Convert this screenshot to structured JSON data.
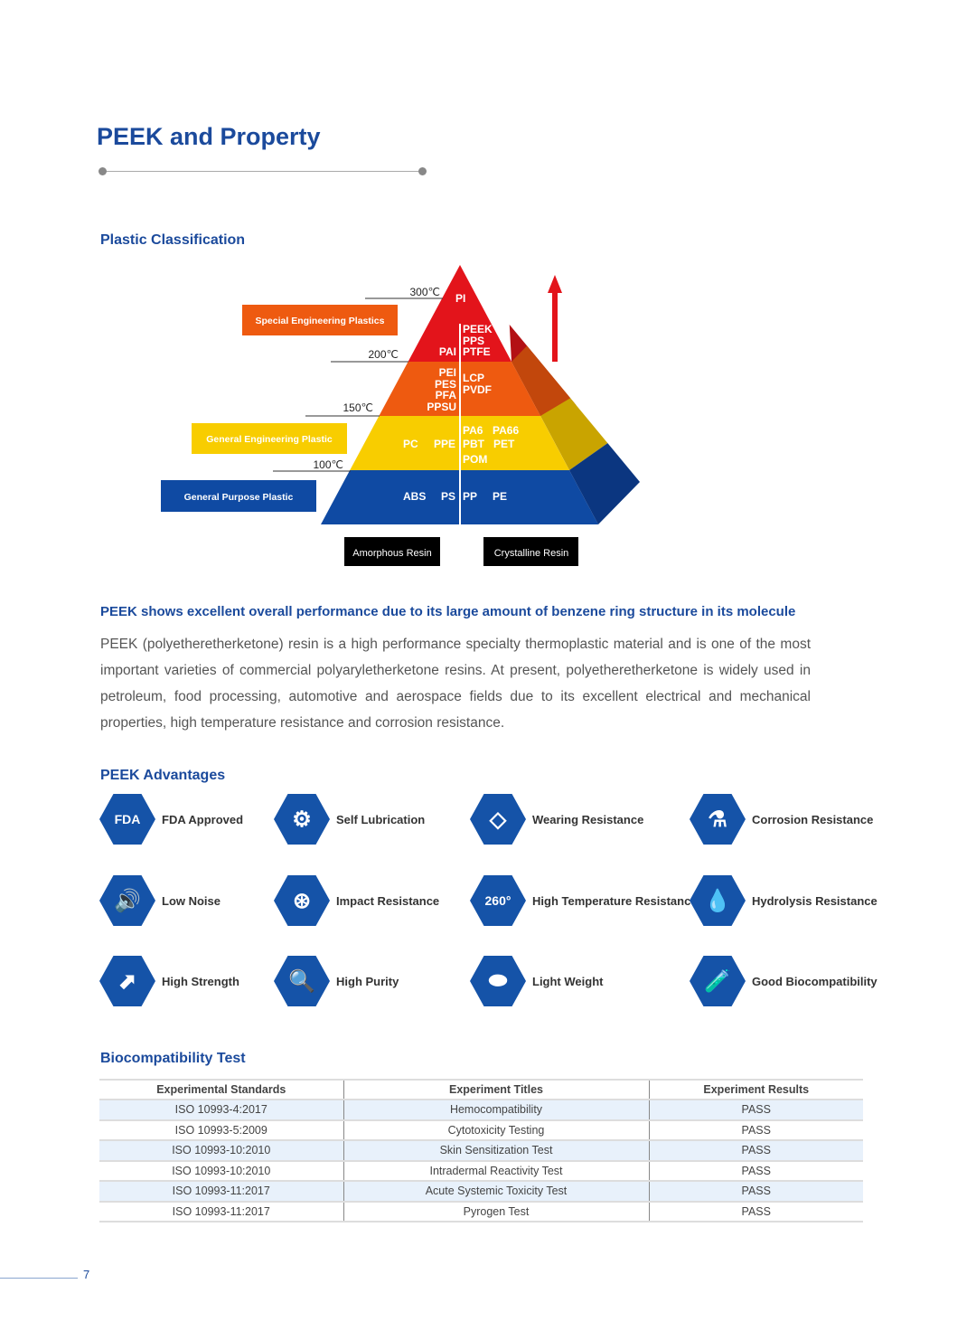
{
  "page": {
    "title": "PEEK and Property",
    "page_number": "7",
    "accent": "#1b4a9c"
  },
  "classification": {
    "heading": "Plastic Classification",
    "temps": [
      "300℃",
      "200℃",
      "150℃",
      "100℃"
    ],
    "categories": [
      "Special Engineering Plastics",
      "General Engineering Plastic",
      "General Purpose Plastic"
    ],
    "resin_types": [
      "Amorphous Resin",
      "Crystalline Resin"
    ],
    "levels": {
      "top": {
        "amorphous": "PI",
        "crystalline": ""
      },
      "special": {
        "amorphous": "PAI",
        "crystalline": [
          "PEEK",
          "PPS",
          "PTFE"
        ]
      },
      "high": {
        "amorphous": [
          "PEI",
          "PES",
          "PFA",
          "PPSU"
        ],
        "crystalline": [
          "LCP",
          "PVDF"
        ]
      },
      "engineering": {
        "amorphous": [
          "PC",
          "PPE"
        ],
        "crystalline": [
          "PA6",
          "PA66",
          "PBT",
          "PET",
          "POM"
        ]
      },
      "general": {
        "amorphous": [
          "ABS",
          "PS"
        ],
        "crystalline": [
          "PP",
          "PE"
        ]
      }
    },
    "colors": {
      "red": "#e3141b",
      "orange": "#ee5a10",
      "yellow": "#f8cd00",
      "blue": "#0f4aa3"
    }
  },
  "performance": {
    "heading": "PEEK shows excellent overall performance due to its large amount of benzene ring structure in its molecule",
    "paragraph": "PEEK (polyetheretherketone) resin is a high performance specialty thermoplastic material and is one of the most important varieties of commercial polyaryletherketone resins. At present, polyetheretherketone is widely used in petroleum, food processing, automotive and aerospace fields due to its excellent electrical and mechanical properties, high temperature resistance and corrosion resistance."
  },
  "advantages": {
    "heading": "PEEK Advantages",
    "items": [
      {
        "label": "FDA Approved",
        "icon": "fda-icon",
        "glyph": "FDA"
      },
      {
        "label": "Self Lubrication",
        "icon": "gears-icon",
        "glyph": "⚙"
      },
      {
        "label": "Wearing Resistance",
        "icon": "eraser-icon",
        "glyph": "◇"
      },
      {
        "label": "Corrosion Resistance",
        "icon": "beaker-icon",
        "glyph": "⚗"
      },
      {
        "label": "Low Noise",
        "icon": "speaker-icon",
        "glyph": "🔊"
      },
      {
        "label": "Impact Resistance",
        "icon": "impact-icon",
        "glyph": "⊛"
      },
      {
        "label": "High Temperature Resistance",
        "icon": "heat-icon",
        "glyph": "260°"
      },
      {
        "label": "Hydrolysis Resistance",
        "icon": "droplets-icon",
        "glyph": "💧"
      },
      {
        "label": "High Strength",
        "icon": "strength-icon",
        "glyph": "⬈"
      },
      {
        "label": "High Purity",
        "icon": "magnifier-icon",
        "glyph": "🔍"
      },
      {
        "label": "Light Weight",
        "icon": "weights-icon",
        "glyph": "⬬"
      },
      {
        "label": "Good Biocompatibility",
        "icon": "test-tube-icon",
        "glyph": "🧪"
      }
    ]
  },
  "biocompatibility": {
    "heading": "Biocompatibility Test",
    "columns": [
      "Experimental Standards",
      "Experiment Titles",
      "Experiment Results"
    ],
    "rows": [
      [
        "ISO 10993-4:2017",
        "Hemocompatibility",
        "PASS"
      ],
      [
        "ISO 10993-5:2009",
        "Cytotoxicity Testing",
        "PASS"
      ],
      [
        "ISO 10993-10:2010",
        "Skin Sensitization Test",
        "PASS"
      ],
      [
        "ISO 10993-10:2010",
        "Intradermal Reactivity Test",
        "PASS"
      ],
      [
        "ISO 10993-11:2017",
        "Acute Systemic Toxicity Test",
        "PASS"
      ],
      [
        "ISO 10993-11:2017",
        "Pyrogen Test",
        "PASS"
      ]
    ]
  }
}
